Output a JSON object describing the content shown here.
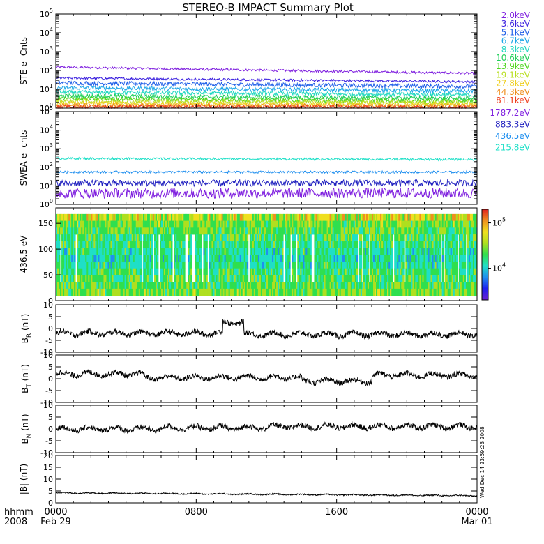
{
  "title": "STEREO-B IMPACT Summary Plot",
  "x_axis": {
    "ticks": [
      "0000",
      "0800",
      "1600",
      "0000"
    ],
    "dates": [
      "Feb 29",
      "",
      "",
      "Mar 01"
    ],
    "left_label": "hhmm",
    "year": "2008"
  },
  "timestamp": "Wed Dec 14 23:59:23 2008",
  "colors": {
    "ste": [
      "#7f1fdf",
      "#3a1fdf",
      "#1f5fe8",
      "#1fa7e8",
      "#1fd7c0",
      "#1fcf5a",
      "#4fd71f",
      "#b7df1f",
      "#efcf1f",
      "#ef8f1f",
      "#ef3f1f"
    ],
    "swea": [
      "#7f1fdf",
      "#1f1fbf",
      "#1f8fef",
      "#1fe0c8"
    ],
    "colorbar": [
      "#6a1fcf",
      "#1f1fef",
      "#1f8fef",
      "#1fdfc7",
      "#2fdf4f",
      "#afdf1f",
      "#efdf1f",
      "#ef8f1f",
      "#df1f1f"
    ]
  },
  "chart_data": [
    {
      "type": "line",
      "panel": "ste",
      "ylabel": "STE e- Cnts",
      "yscale": "log",
      "ylim": [
        1,
        100000
      ],
      "yticks": [
        "10^0",
        "10^1",
        "10^2",
        "10^3",
        "10^4",
        "10^5"
      ],
      "x_range_hours": [
        0,
        24
      ],
      "series": [
        {
          "name": "2.0keV",
          "values_start_end": [
            150,
            70
          ]
        },
        {
          "name": "3.6keV",
          "values_start_end": [
            40,
            25
          ]
        },
        {
          "name": "5.1keV",
          "values_start_end": [
            22,
            14
          ]
        },
        {
          "name": "6.7keV",
          "values_start_end": [
            12,
            8
          ]
        },
        {
          "name": "8.3keV",
          "values_start_end": [
            7,
            5
          ]
        },
        {
          "name": "10.6keV",
          "values_start_end": [
            4.5,
            3.2
          ]
        },
        {
          "name": "13.9keV",
          "values_start_end": [
            3.2,
            2.4
          ]
        },
        {
          "name": "19.1keV",
          "values_start_end": [
            2.4,
            1.9
          ]
        },
        {
          "name": "27.8keV",
          "values_start_end": [
            1.8,
            1.5
          ]
        },
        {
          "name": "44.3keV",
          "values_start_end": [
            1.4,
            1.25
          ]
        },
        {
          "name": "81.1keV",
          "values_start_end": [
            1.15,
            1.1
          ]
        }
      ]
    },
    {
      "type": "line",
      "panel": "swea",
      "ylabel": "SWEA e- cnts",
      "yscale": "log",
      "ylim": [
        1,
        100000
      ],
      "yticks": [
        "10^0",
        "10^1",
        "10^2",
        "10^3",
        "10^4",
        "10^5"
      ],
      "x_range_hours": [
        0,
        24
      ],
      "series": [
        {
          "name": "1787.2eV",
          "values_start_end": [
            4,
            4
          ]
        },
        {
          "name": "883.3eV",
          "values_start_end": [
            14,
            14
          ]
        },
        {
          "name": "436.5eV",
          "values_start_end": [
            55,
            55
          ]
        },
        {
          "name": "215.8eV",
          "values_start_end": [
            300,
            260
          ]
        }
      ]
    },
    {
      "type": "heatmap",
      "panel": "pad",
      "ylabel": "436.5 eV",
      "ylim": [
        0,
        180
      ],
      "yticks": [
        "0",
        "50",
        "100",
        "150"
      ],
      "colorbar": {
        "scale": "log",
        "ticks": [
          "10^4",
          "10^5"
        ],
        "range": [
          2000,
          200000
        ]
      },
      "x_range_hours": [
        0,
        24
      ]
    },
    {
      "type": "line",
      "panel": "br",
      "ylabel": "B_R (nT)",
      "ylim": [
        -10,
        10
      ],
      "yticks": [
        "-10",
        "-5",
        "0",
        "5",
        "10"
      ],
      "features": [
        {
          "hour_start": 0,
          "hour_end": 9.5,
          "mean": -2
        },
        {
          "hour_start": 9.5,
          "hour_end": 10.7,
          "mean": 2.5
        },
        {
          "hour_start": 10.7,
          "hour_end": 24,
          "mean": -2.5
        }
      ]
    },
    {
      "type": "line",
      "panel": "bt",
      "ylabel": "B_T (nT)",
      "ylim": [
        -10,
        10
      ],
      "yticks": [
        "-10",
        "-5",
        "0",
        "5",
        "10"
      ],
      "features": [
        {
          "hour_start": 0,
          "hour_end": 5,
          "mean": 2
        },
        {
          "hour_start": 5,
          "hour_end": 14,
          "mean": 0.5
        },
        {
          "hour_start": 14,
          "hour_end": 18,
          "mean": -1
        },
        {
          "hour_start": 18,
          "hour_end": 24,
          "mean": 1.5
        }
      ]
    },
    {
      "type": "line",
      "panel": "bn",
      "ylabel": "B_N (nT)",
      "ylim": [
        -10,
        10
      ],
      "yticks": [
        "-10",
        "-5",
        "0",
        "5",
        "10"
      ],
      "features": [
        {
          "hour_start": 0,
          "hour_end": 6,
          "mean": 0
        },
        {
          "hour_start": 6,
          "hour_end": 12,
          "mean": 0.5
        },
        {
          "hour_start": 12,
          "hour_end": 24,
          "mean": 1
        }
      ]
    },
    {
      "type": "line",
      "panel": "bmag",
      "ylabel": "|B| (nT)",
      "ylim": [
        0,
        20
      ],
      "yticks": [
        "0",
        "5",
        "10",
        "15",
        "20"
      ],
      "values_start_end": [
        4.2,
        3.0
      ]
    }
  ]
}
